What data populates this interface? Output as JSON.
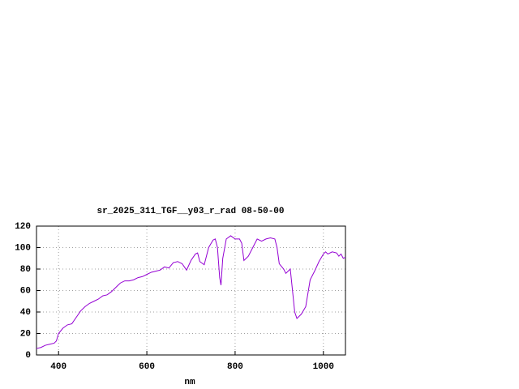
{
  "chart_data": {
    "type": "line",
    "title": "sr_2025_311_TGF__y03_r_rad 08-50-00",
    "x_label": "nm",
    "xlim": [
      350,
      1050
    ],
    "ylim": [
      0,
      120
    ],
    "xticks": [
      400,
      600,
      800,
      1000
    ],
    "yticks": [
      0,
      20,
      40,
      60,
      80,
      100,
      120
    ],
    "grid": true,
    "x": [
      350,
      360,
      370,
      380,
      390,
      395,
      400,
      410,
      420,
      430,
      440,
      450,
      460,
      470,
      480,
      490,
      500,
      510,
      520,
      530,
      540,
      550,
      560,
      570,
      580,
      590,
      600,
      610,
      620,
      630,
      640,
      650,
      660,
      670,
      680,
      690,
      700,
      710,
      715,
      720,
      730,
      740,
      750,
      755,
      760,
      765,
      768,
      772,
      780,
      790,
      800,
      810,
      815,
      820,
      830,
      840,
      850,
      860,
      870,
      880,
      890,
      895,
      900,
      910,
      915,
      920,
      925,
      930,
      935,
      940,
      950,
      960,
      970,
      980,
      990,
      1000,
      1005,
      1010,
      1020,
      1030,
      1035,
      1040,
      1045,
      1050
    ],
    "series": [
      {
        "color": "#9400d3",
        "values": [
          6,
          7,
          9,
          10,
          11,
          13,
          20,
          25,
          28,
          29,
          35,
          41,
          45,
          48,
          50,
          52,
          55,
          56,
          59,
          63,
          67,
          69,
          69,
          70,
          72,
          73,
          75,
          77,
          78,
          79,
          82,
          81,
          86,
          87,
          85,
          79,
          88,
          94,
          95,
          87,
          84,
          100,
          107,
          108,
          100,
          72,
          65,
          90,
          108,
          111,
          108,
          108,
          104,
          88,
          92,
          100,
          108,
          106,
          108,
          109,
          108,
          100,
          85,
          80,
          76,
          78,
          80,
          60,
          40,
          34,
          38,
          45,
          70,
          78,
          87,
          94,
          96,
          94,
          96,
          95,
          92,
          94,
          90,
          91
        ]
      }
    ]
  }
}
